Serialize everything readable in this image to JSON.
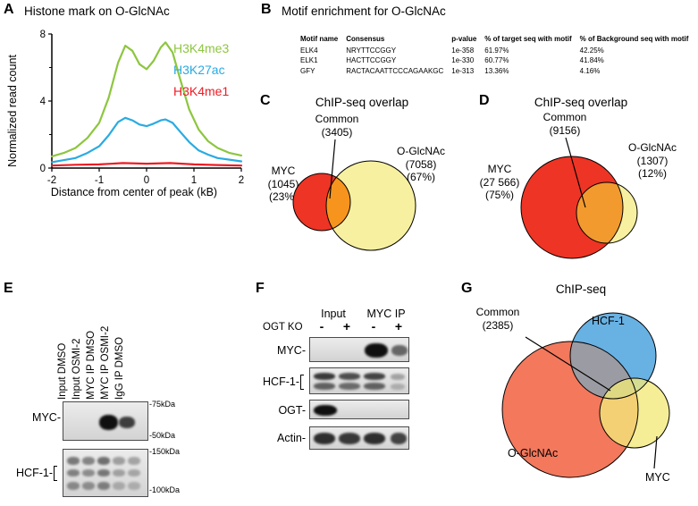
{
  "panelA": {
    "label": "A",
    "title": "Histone mark on O-GlcNAc",
    "ylabel": "Normalized read count",
    "xlabel": "Distance from center of peak (kB)"
  },
  "chart_data": {
    "type": "line",
    "title": "Histone mark on O-GlcNAc",
    "xlabel": "Distance from center of peak (kB)",
    "ylabel": "Normalized read count",
    "xlim": [
      -2,
      2
    ],
    "ylim": [
      0,
      8
    ],
    "xticks": [
      -2,
      -1,
      0,
      1,
      2
    ],
    "yticks": [
      0,
      4,
      8
    ],
    "minor_yticks": [
      2,
      6
    ],
    "grid": false,
    "legend_position": "top-right",
    "series": [
      {
        "name": "H3K4me3",
        "color": "#8dc63f",
        "points": [
          [
            -2,
            0.7
          ],
          [
            -1.75,
            0.9
          ],
          [
            -1.5,
            1.2
          ],
          [
            -1.25,
            1.8
          ],
          [
            -1,
            2.7
          ],
          [
            -0.8,
            4.2
          ],
          [
            -0.6,
            6.3
          ],
          [
            -0.45,
            7.3
          ],
          [
            -0.3,
            7.0
          ],
          [
            -0.15,
            6.2
          ],
          [
            0,
            5.9
          ],
          [
            0.15,
            6.4
          ],
          [
            0.3,
            7.2
          ],
          [
            0.4,
            7.5
          ],
          [
            0.55,
            6.9
          ],
          [
            0.7,
            5.4
          ],
          [
            0.9,
            3.5
          ],
          [
            1.1,
            2.3
          ],
          [
            1.3,
            1.6
          ],
          [
            1.5,
            1.2
          ],
          [
            1.75,
            0.9
          ],
          [
            2,
            0.75
          ]
        ]
      },
      {
        "name": "H3K27ac",
        "color": "#29abe2",
        "points": [
          [
            -2,
            0.35
          ],
          [
            -1.5,
            0.6
          ],
          [
            -1.25,
            0.9
          ],
          [
            -1,
            1.3
          ],
          [
            -0.8,
            1.95
          ],
          [
            -0.6,
            2.75
          ],
          [
            -0.45,
            3.0
          ],
          [
            -0.3,
            2.85
          ],
          [
            -0.15,
            2.6
          ],
          [
            0,
            2.5
          ],
          [
            0.15,
            2.65
          ],
          [
            0.3,
            2.85
          ],
          [
            0.4,
            2.9
          ],
          [
            0.55,
            2.7
          ],
          [
            0.7,
            2.2
          ],
          [
            0.9,
            1.55
          ],
          [
            1.1,
            1.05
          ],
          [
            1.3,
            0.8
          ],
          [
            1.5,
            0.6
          ],
          [
            2,
            0.4
          ]
        ]
      },
      {
        "name": "H3K4me1",
        "color": "#ed1c24",
        "points": [
          [
            -2,
            0.15
          ],
          [
            -1.5,
            0.2
          ],
          [
            -1,
            0.22
          ],
          [
            -0.5,
            0.3
          ],
          [
            0,
            0.26
          ],
          [
            0.5,
            0.3
          ],
          [
            1,
            0.22
          ],
          [
            1.5,
            0.18
          ],
          [
            2,
            0.15
          ]
        ]
      }
    ]
  },
  "panelB": {
    "label": "B",
    "title": "Motif enrichment for O-GlcNAc",
    "table": {
      "headers": [
        "Motif name",
        "Consensus",
        "p-value",
        "% of target seq with motif",
        "% of Background seq with motif"
      ],
      "rows": [
        [
          "ELK4",
          "NRYTTCCGGY",
          "1e-358",
          "61.97%",
          "42.25%"
        ],
        [
          "ELK1",
          "HACTTCCGGY",
          "1e-330",
          "60.77%",
          "41.84%"
        ],
        [
          "GFY",
          "RACTACAATTCCCAGAAKGC",
          "1e-313",
          "13.36%",
          "4.16%"
        ]
      ]
    }
  },
  "panelC": {
    "label": "C",
    "title": "ChIP-seq overlap",
    "common": [
      "Common",
      "(3405)"
    ],
    "myc": [
      "MYC",
      "(1045)",
      "(23%)"
    ],
    "oglcnac": [
      "O-GlcNAc",
      "(7058)",
      "(67%)"
    ],
    "colors": {
      "myc": "#ee3424",
      "oglcnac": "#f7f0a0",
      "overlap": "#f7941d"
    }
  },
  "panelD": {
    "label": "D",
    "title": "ChIP-seq overlap",
    "common": [
      "Common",
      "(9156)"
    ],
    "myc": [
      "MYC",
      "(27 566)",
      "(75%)"
    ],
    "oglcnac": [
      "O-GlcNAc",
      "(1307)",
      "(12%)"
    ],
    "colors": {
      "myc": "#ee3424",
      "oglcnac": "#f7f0a0",
      "overlap": "#f29a2e"
    }
  },
  "panelE": {
    "label": "E",
    "lanes": [
      "Input DMSO",
      "Input OSMI-2",
      "MYC IP DMSO",
      "MYC IP OSMI-2",
      "IgG IP DMSO"
    ],
    "blots": [
      {
        "target": "MYC-",
        "markers": [
          "-75kDa",
          "-50kDa"
        ]
      },
      {
        "target": "HCF-1-",
        "markers": [
          "-150kDa",
          "-100kDa"
        ]
      }
    ]
  },
  "panelF": {
    "label": "F",
    "groups": [
      "Input",
      "MYC IP"
    ],
    "condition_label": "OGT KO",
    "conditions": [
      "-",
      "+",
      "-",
      "+"
    ],
    "rows": [
      "MYC-",
      "HCF-1-",
      "OGT-",
      "Actin-"
    ]
  },
  "panelG": {
    "label": "G",
    "title": "ChIP-seq",
    "common": [
      "Common",
      "(2385)"
    ],
    "sets": {
      "hcf1": "HCF-1",
      "oglcnac": "O-GlcNAc",
      "myc": "MYC"
    },
    "colors": {
      "hcf1": "#68b1e3",
      "oglcnac": "#f3785c",
      "myc": "#f2e97a",
      "common_overlap": "#9b9ba3"
    }
  }
}
